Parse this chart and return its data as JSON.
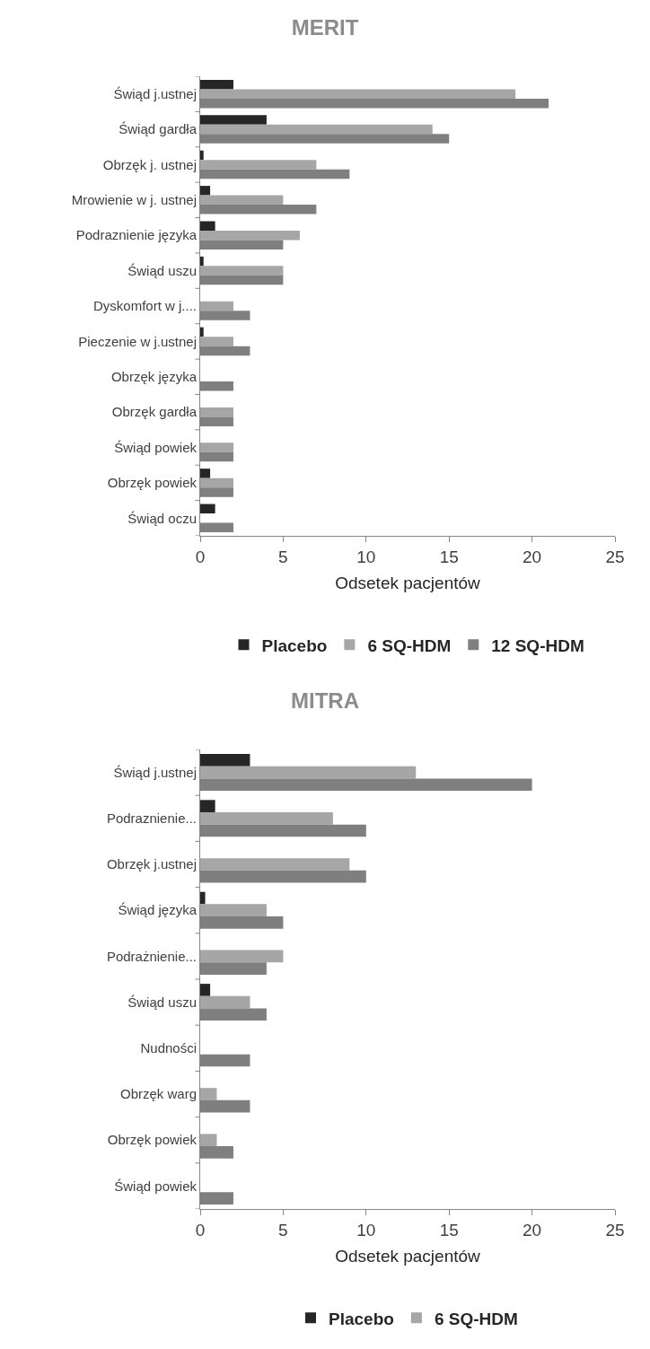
{
  "chart_data": [
    {
      "type": "bar",
      "orientation": "horizontal",
      "title": "MERIT",
      "xlabel": "Odsetek pacjentów",
      "categories": [
        "Świąd j.ustnej",
        "Świąd gardła",
        "Obrzęk j. ustnej",
        "Mrowienie w j. ustnej",
        "Podraznienie języka",
        "Świąd uszu",
        "Dyskomfort w j....",
        "Pieczenie w j.ustnej",
        "Obrzęk języka",
        "Obrzęk gardła",
        "Świąd powiek",
        "Obrzęk powiek",
        "Świąd oczu"
      ],
      "series": [
        {
          "name": "Placebo",
          "color": "#262626",
          "values": [
            2,
            4,
            0.2,
            0.6,
            0.9,
            0.2,
            0,
            0.2,
            0,
            0,
            0,
            0.6,
            0.9
          ]
        },
        {
          "name": "6 SQ-HDM",
          "color": "#a6a6a6",
          "values": [
            19,
            14,
            7,
            5,
            6,
            5,
            2,
            2,
            0,
            2,
            2,
            2,
            0
          ]
        },
        {
          "name": "12 SQ-HDM",
          "color": "#7f7f7f",
          "values": [
            21,
            15,
            9,
            7,
            5,
            5,
            3,
            3,
            2,
            2,
            2,
            2,
            2
          ]
        }
      ],
      "xlim": [
        0,
        25
      ],
      "xticks": [
        0,
        5,
        10,
        15,
        20,
        25
      ],
      "grid": false,
      "legend": "bottom"
    },
    {
      "type": "bar",
      "orientation": "horizontal",
      "title": "MITRA",
      "xlabel": "Odsetek pacjentów",
      "categories": [
        "Świąd j.ustnej",
        "Podraznienie...",
        "Obrzęk j.ustnej",
        "Świąd języka",
        "Podrażnienie...",
        "Świąd uszu",
        "Nudności",
        "Obrzęk warg",
        "Obrzęk powiek",
        "Świąd powiek"
      ],
      "series": [
        {
          "name": "Placebo",
          "color": "#262626",
          "values": [
            3,
            0.9,
            0,
            0.3,
            0,
            0.6,
            0,
            0,
            0,
            0
          ]
        },
        {
          "name": "6 SQ-HDM",
          "color": "#a6a6a6",
          "values": [
            13,
            8,
            9,
            4,
            5,
            3,
            0,
            1,
            1,
            0
          ]
        },
        {
          "color": "#7f7f7f",
          "values": [
            20,
            10,
            10,
            5,
            4,
            4,
            3,
            3,
            2,
            2
          ]
        }
      ],
      "xlim": [
        0,
        25
      ],
      "xticks": [
        0,
        5,
        10,
        15,
        20,
        25
      ],
      "grid": false,
      "legend": "bottom"
    }
  ]
}
